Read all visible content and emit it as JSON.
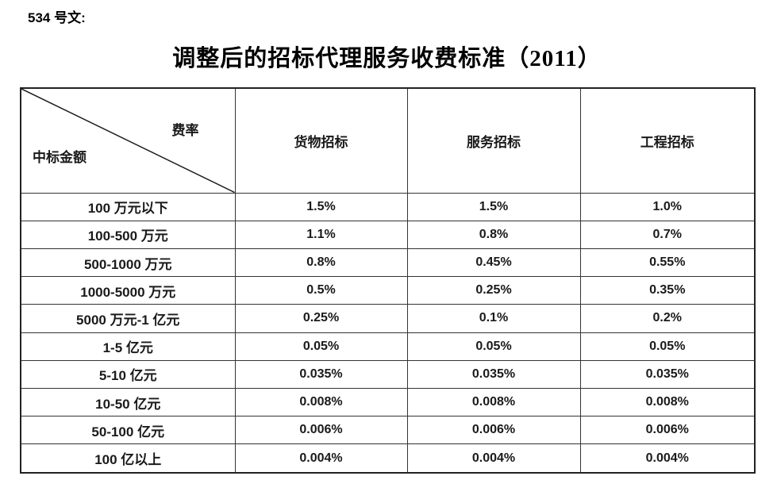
{
  "doc_label": "534 号文:",
  "title": "调整后的招标代理服务收费标准（2011）",
  "table": {
    "corner_top_right": "费率",
    "corner_bottom_left": "中标金额",
    "columns": [
      "货物招标",
      "服务招标",
      "工程招标"
    ],
    "rows": [
      {
        "label": "100 万元以下",
        "values": [
          "1.5%",
          "1.5%",
          "1.0%"
        ]
      },
      {
        "label": "100-500 万元",
        "values": [
          "1.1%",
          "0.8%",
          "0.7%"
        ]
      },
      {
        "label": "500-1000 万元",
        "values": [
          "0.8%",
          "0.45%",
          "0.55%"
        ]
      },
      {
        "label": "1000-5000 万元",
        "values": [
          "0.5%",
          "0.25%",
          "0.35%"
        ]
      },
      {
        "label": "5000 万元-1 亿元",
        "values": [
          "0.25%",
          "0.1%",
          "0.2%"
        ]
      },
      {
        "label": "1-5 亿元",
        "values": [
          "0.05%",
          "0.05%",
          "0.05%"
        ]
      },
      {
        "label": "5-10 亿元",
        "values": [
          "0.035%",
          "0.035%",
          "0.035%"
        ]
      },
      {
        "label": "10-50 亿元",
        "values": [
          "0.008%",
          "0.008%",
          "0.008%"
        ]
      },
      {
        "label": "50-100 亿元",
        "values": [
          "0.006%",
          "0.006%",
          "0.006%"
        ]
      },
      {
        "label": "100 亿以上",
        "values": [
          "0.004%",
          "0.004%",
          "0.004%"
        ]
      }
    ]
  },
  "colors": {
    "text": "#111111",
    "border_inner": "#333333",
    "border_outer": "#222222",
    "background": "#ffffff"
  }
}
